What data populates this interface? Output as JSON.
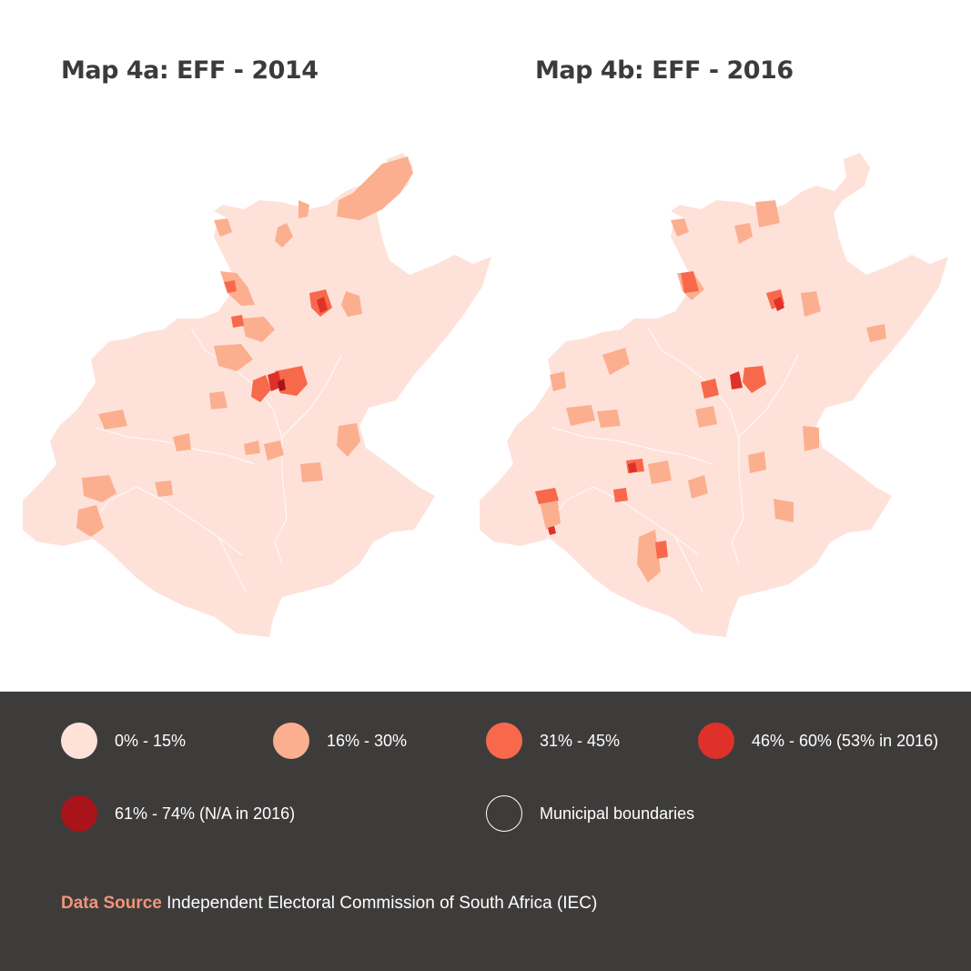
{
  "maps": [
    {
      "title": "Map 4a: EFF - 2014"
    },
    {
      "title": "Map 4b: EFF - 2016"
    }
  ],
  "legend": [
    {
      "label": "0% - 15%",
      "color": "#fee2d9",
      "outline": false
    },
    {
      "label": "16% - 30%",
      "color": "#fbaf8f",
      "outline": false
    },
    {
      "label": "31% - 45%",
      "color": "#f8694c",
      "outline": false
    },
    {
      "label": "46% - 60% (53% in 2016)",
      "color": "#e0302a",
      "outline": false
    },
    {
      "label": "61% - 74% (N/A in 2016)",
      "color": "#a81419",
      "outline": false
    },
    {
      "label": "Municipal boundaries",
      "color": "#ffffff",
      "outline": true
    }
  ],
  "source": {
    "label": "Data Source",
    "text": "Independent Electoral Commission of South Africa (IEC)"
  }
}
